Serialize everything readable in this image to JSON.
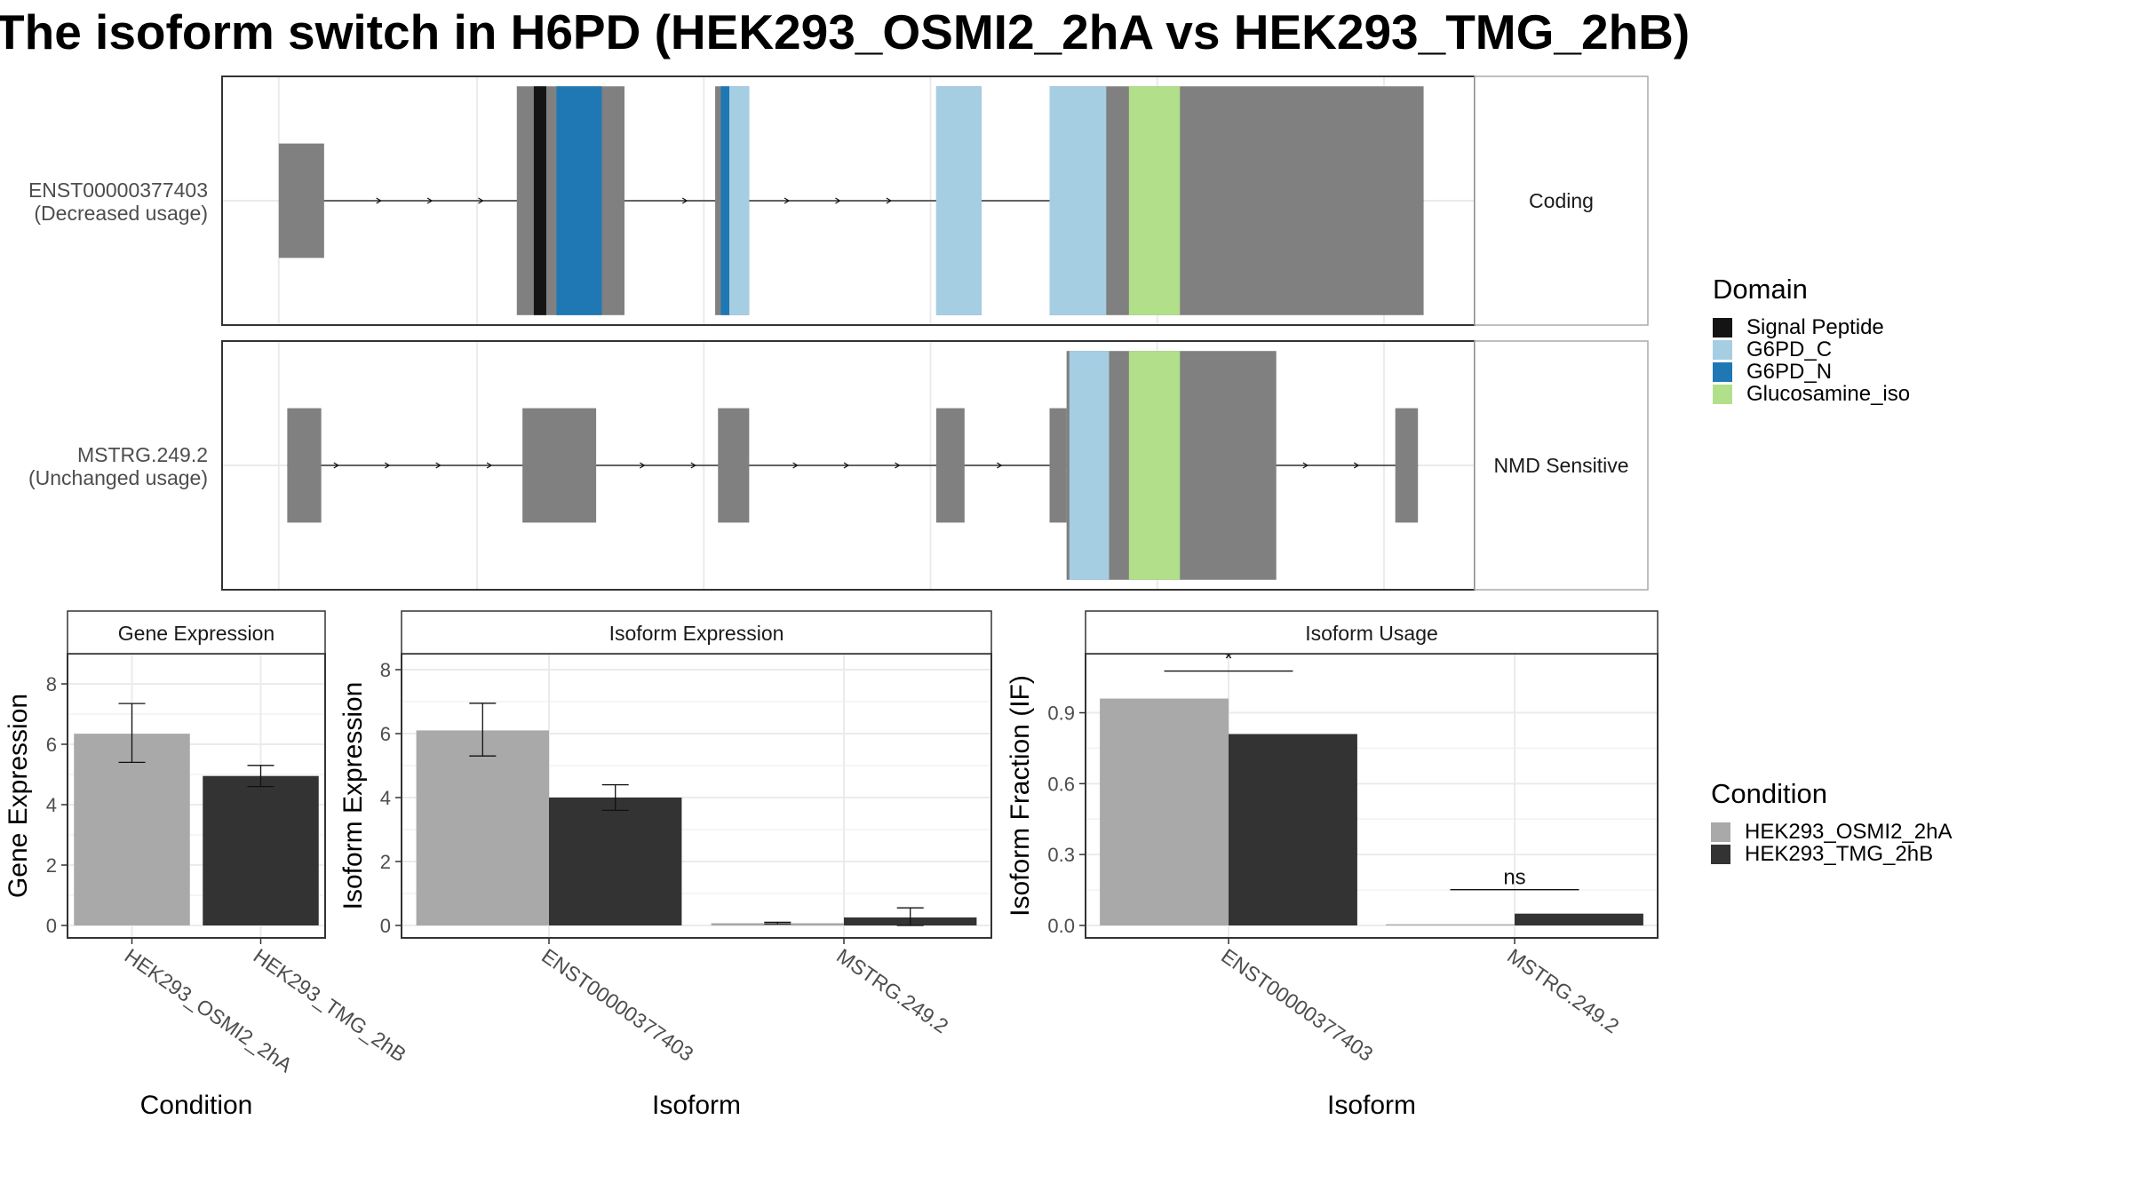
{
  "title": "The isoform switch in H6PD (HEK293_OSMI2_2hA vs HEK293_TMG_2hB)",
  "colors": {
    "exon": "#808080",
    "signal_peptide": "#141414",
    "g6pd_c": "#a6cee3",
    "g6pd_n": "#1f78b4",
    "glucosamine_iso": "#b2df8a",
    "cond_a": "#a9a9a9",
    "cond_b": "#333333"
  },
  "transcripts": [
    {
      "label_line1": "ENST00000377403",
      "label_line2": "(Decreased usage)",
      "strip": "Coding",
      "intron_range": [
        0.2,
        20.4
      ],
      "utr_exons": [
        [
          0.2,
          1.0
        ]
      ],
      "cds_exons": [
        [
          4.4,
          6.3
        ],
        [
          7.9,
          8.5
        ],
        [
          11.8,
          12.6
        ],
        [
          13.8,
          20.4
        ]
      ],
      "domains": [
        {
          "domain": "Signal Peptide",
          "range": [
            4.7,
            4.92
          ]
        },
        {
          "domain": "G6PD_N",
          "range": [
            5.1,
            5.9
          ]
        },
        {
          "domain": "G6PD_N",
          "range": [
            8.0,
            8.15
          ]
        },
        {
          "domain": "G6PD_C",
          "range": [
            8.15,
            8.5
          ]
        },
        {
          "domain": "G6PD_C",
          "range": [
            11.8,
            12.6
          ]
        },
        {
          "domain": "G6PD_C",
          "range": [
            13.8,
            14.8
          ]
        },
        {
          "domain": "Glucosamine_iso",
          "range": [
            15.2,
            16.1
          ]
        }
      ]
    },
    {
      "label_line1": "MSTRG.249.2",
      "label_line2": "(Unchanged usage)",
      "strip": "NMD Sensitive",
      "intron_range": [
        0.35,
        20.3
      ],
      "utr_exons": [
        [
          0.35,
          0.95
        ],
        [
          4.5,
          5.8
        ],
        [
          7.95,
          8.5
        ],
        [
          11.8,
          12.3
        ],
        [
          13.8,
          14.1
        ],
        [
          19.9,
          20.3
        ]
      ],
      "cds_exons": [
        [
          14.1,
          17.8
        ]
      ],
      "domains": [
        {
          "domain": "G6PD_C",
          "range": [
            14.15,
            14.85
          ]
        },
        {
          "domain": "Glucosamine_iso",
          "range": [
            15.2,
            16.1
          ]
        }
      ]
    }
  ],
  "legend_domain": {
    "title": "Domain",
    "items": [
      {
        "label": "Signal Peptide",
        "color": "#141414"
      },
      {
        "label": "G6PD_C",
        "color": "#a6cee3"
      },
      {
        "label": "G6PD_N",
        "color": "#1f78b4"
      },
      {
        "label": "Glucosamine_iso",
        "color": "#b2df8a"
      }
    ]
  },
  "legend_condition": {
    "title": "Condition",
    "items": [
      {
        "label": "HEK293_OSMI2_2hA",
        "color": "#a9a9a9"
      },
      {
        "label": "HEK293_TMG_2hB",
        "color": "#333333"
      }
    ]
  },
  "chart_data": [
    {
      "type": "bar",
      "title": "Gene Expression",
      "xlabel": "Condition",
      "ylabel": "Gene Expression",
      "categories": [
        "HEK293_OSMI2_2hA",
        "HEK293_TMG_2hB"
      ],
      "values": [
        6.35,
        4.95
      ],
      "error": [
        [
          5.4,
          7.35
        ],
        [
          4.6,
          5.3
        ]
      ],
      "ylim": [
        0,
        9
      ],
      "yticks": [
        0,
        2,
        4,
        6,
        8
      ]
    },
    {
      "type": "bar",
      "title": "Isoform Expression",
      "xlabel": "Isoform",
      "ylabel": "Isoform Expression",
      "categories": [
        "ENST00000377403",
        "MSTRG.249.2"
      ],
      "series": [
        {
          "name": "HEK293_OSMI2_2hA",
          "values": [
            6.1,
            0.07
          ],
          "error": [
            [
              5.3,
              6.95
            ],
            [
              0.05,
              0.1
            ]
          ]
        },
        {
          "name": "HEK293_TMG_2hB",
          "values": [
            4.0,
            0.25
          ],
          "error": [
            [
              3.6,
              4.4
            ],
            [
              0.0,
              0.55
            ]
          ]
        }
      ],
      "ylim": [
        0,
        8.5
      ],
      "yticks": [
        0,
        2,
        4,
        6,
        8
      ]
    },
    {
      "type": "bar",
      "title": "Isoform Usage",
      "xlabel": "Isoform",
      "ylabel": "Isoform Fraction (IF)",
      "categories": [
        "ENST00000377403",
        "MSTRG.249.2"
      ],
      "series": [
        {
          "name": "HEK293_OSMI2_2hA",
          "values": [
            0.96,
            0.005
          ]
        },
        {
          "name": "HEK293_TMG_2hB",
          "values": [
            0.81,
            0.05
          ]
        }
      ],
      "significance": [
        "*",
        "ns"
      ],
      "ylim": [
        0,
        1.15
      ],
      "yticks": [
        0.0,
        0.3,
        0.6,
        0.9
      ],
      "ytick_labels": [
        "0.0",
        "0.3",
        "0.6",
        "0.9"
      ]
    }
  ]
}
